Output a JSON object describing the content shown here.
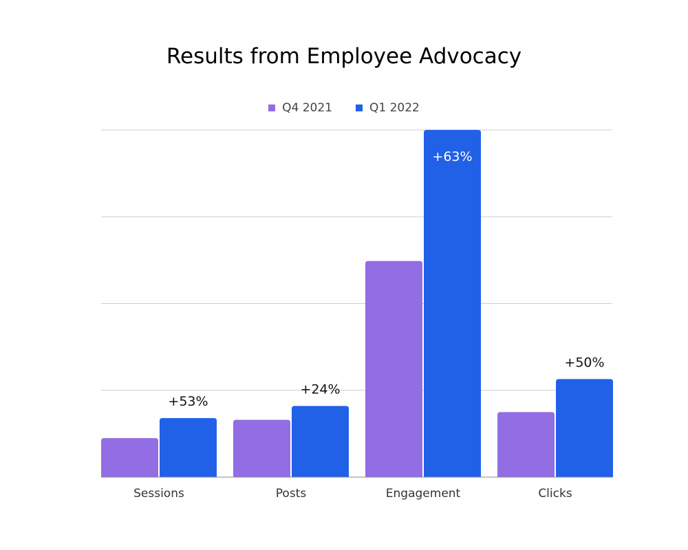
{
  "chart_data": {
    "type": "bar",
    "title": "Results from Employee Advocacy",
    "xlabel": "",
    "ylabel": "",
    "categories": [
      "Sessions",
      "Posts",
      "Engagement",
      "Clicks"
    ],
    "series": [
      {
        "name": "Q4 2021",
        "color": "#936de3",
        "values": [
          0.45,
          0.66,
          2.49,
          0.75
        ]
      },
      {
        "name": "Q1 2022",
        "color": "#2161e8",
        "values": [
          0.68,
          0.82,
          4.0,
          1.13
        ]
      }
    ],
    "annotations": [
      "+53%",
      "+24%",
      "+63%",
      "+50%"
    ],
    "ylim": [
      0,
      4
    ],
    "grid": true,
    "y_tick_labels_shown": false,
    "legend_position": "top"
  }
}
